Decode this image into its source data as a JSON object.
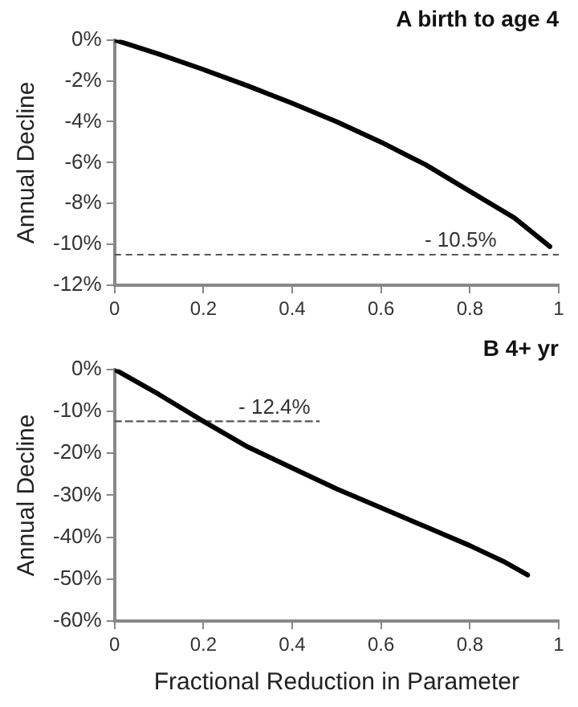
{
  "chart_data": [
    {
      "type": "line",
      "title": "A birth to age 4",
      "ylabel": "Annual Decline",
      "xlim": [
        0,
        1
      ],
      "xticks": [
        0,
        0.2,
        0.4,
        0.6,
        0.8,
        1
      ],
      "ylim": [
        -12,
        0
      ],
      "yticks": [
        {
          "value": -12,
          "label": "-12%"
        },
        {
          "value": -10,
          "label": "-10%"
        },
        {
          "value": -8,
          "label": "-8%"
        },
        {
          "value": -6,
          "label": "-6%"
        },
        {
          "value": -4,
          "label": "-4%"
        },
        {
          "value": -2,
          "label": "-2%"
        },
        {
          "value": 0,
          "label": "0%"
        }
      ],
      "grid": false,
      "legend": false,
      "marker": "none",
      "series": [
        {
          "color": "#000000",
          "line_style": "solid",
          "x": [
            0,
            0.1,
            0.2,
            0.3,
            0.4,
            0.5,
            0.6,
            0.7,
            0.8,
            0.9,
            0.98
          ],
          "values": [
            0,
            -0.7,
            -1.45,
            -2.25,
            -3.1,
            -4.0,
            -5.0,
            -6.1,
            -7.4,
            -8.7,
            -10.1
          ]
        }
      ],
      "ref_lines": [
        {
          "axis": "y",
          "value": -10.5,
          "label": "- 10.5%",
          "color": "#555555",
          "line_style": "dashed"
        }
      ]
    },
    {
      "type": "line",
      "title": "B 4+ yr",
      "xlabel": "Fractional Reduction in Parameter",
      "ylabel": "Annual Decline",
      "xlim": [
        0,
        1
      ],
      "xticks": [
        0,
        0.2,
        0.4,
        0.6,
        0.8,
        1
      ],
      "ylim": [
        -60,
        0
      ],
      "yticks": [
        {
          "value": -60,
          "label": "-60%"
        },
        {
          "value": -50,
          "label": "-50%"
        },
        {
          "value": -40,
          "label": "-40%"
        },
        {
          "value": -30,
          "label": "-30%"
        },
        {
          "value": -20,
          "label": "-20%"
        },
        {
          "value": -10,
          "label": "-10%"
        },
        {
          "value": 0,
          "label": "0%"
        }
      ],
      "grid": false,
      "legend": false,
      "marker": "none",
      "series": [
        {
          "color": "#000000",
          "line_style": "solid",
          "x": [
            0,
            0.1,
            0.2,
            0.3,
            0.4,
            0.5,
            0.6,
            0.7,
            0.8,
            0.88,
            0.93
          ],
          "values": [
            0,
            -6,
            -12.4,
            -18.5,
            -23.5,
            -28.5,
            -33,
            -37.5,
            -42,
            -46,
            -49
          ]
        },
        {
          "color": "#555555",
          "line_style": "dashed",
          "x": [
            0,
            0.46
          ],
          "values": [
            -12.4,
            -12.4
          ]
        }
      ],
      "annotations": [
        {
          "text": "- 12.4%",
          "x": 0.36,
          "y": -12.4
        }
      ]
    }
  ]
}
